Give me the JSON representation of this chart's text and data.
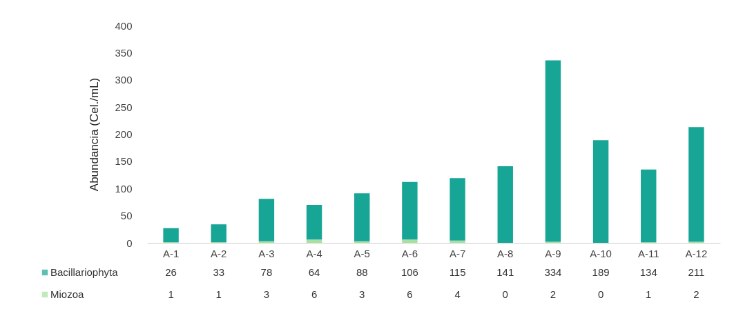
{
  "chart_data": {
    "type": "bar",
    "stacked": true,
    "ylabel": "Abundancia (Cel./mL)",
    "categories": [
      "A-1",
      "A-2",
      "A-3",
      "A-4",
      "A-5",
      "A-6",
      "A-7",
      "A-8",
      "A-9",
      "A-10",
      "A-11",
      "A-12"
    ],
    "series": [
      {
        "name": "Miozoa",
        "color": "#a8e0a0",
        "values": [
          1,
          1,
          3,
          6,
          3,
          6,
          4,
          0,
          2,
          0,
          1,
          2
        ]
      },
      {
        "name": "Bacillariophyta",
        "color": "#17a596",
        "values": [
          26,
          33,
          78,
          64,
          88,
          106,
          115,
          141,
          334,
          189,
          134,
          211
        ]
      }
    ],
    "ylim": [
      0,
      400
    ],
    "yticks": [
      0,
      50,
      100,
      150,
      200,
      250,
      300,
      350,
      400
    ],
    "grid": false,
    "legend": "bottom",
    "data_labels": true
  }
}
